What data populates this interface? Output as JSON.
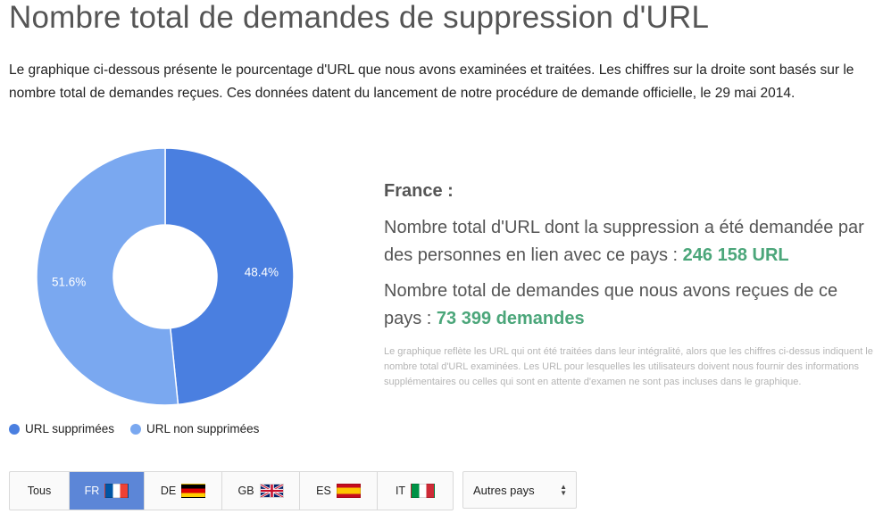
{
  "page": {
    "title": "Nombre total de demandes de suppression d'URL",
    "intro": "Le graphique ci-dessous présente le pourcentage d'URL que nous avons examinées et traitées. Les chiffres sur la droite sont basés sur le nombre total de demandes reçues. Ces données datent du lancement de notre procédure de demande officielle, le 29 mai 2014."
  },
  "chart_data": {
    "type": "pie",
    "donut": true,
    "categories": [
      "URL supprimées",
      "URL non supprimées"
    ],
    "values": [
      48.4,
      51.6
    ],
    "value_labels": [
      "48.4%",
      "51.6%"
    ],
    "colors": [
      "#4a7fe0",
      "#7aa8f0"
    ],
    "legend_position": "bottom-left"
  },
  "stats": {
    "country": "France :",
    "urls_prefix": "Nombre total d'URL dont la suppression a été demandée par des personnes en lien avec ce pays : ",
    "urls_value": "246 158 URL",
    "requests_prefix": "Nombre total de demandes que nous avons reçues de ce pays : ",
    "requests_value": "73 399 demandes",
    "footnote": "Le graphique reflète les URL qui ont été traitées dans leur intégralité, alors que les chiffres ci-dessus indiquent le nombre total d'URL examinées. Les URL pour lesquelles les utilisateurs doivent nous fournir des informations supplémentaires ou celles qui sont en attente d'examen ne sont pas incluses dans le graphique."
  },
  "tabs": [
    {
      "label": "Tous",
      "active": false,
      "flag": null
    },
    {
      "label": "FR",
      "active": true,
      "flag": "france-flag-icon"
    },
    {
      "label": "DE",
      "active": false,
      "flag": "germany-flag-icon"
    },
    {
      "label": "GB",
      "active": false,
      "flag": "uk-flag-icon"
    },
    {
      "label": "ES",
      "active": false,
      "flag": "spain-flag-icon"
    },
    {
      "label": "IT",
      "active": false,
      "flag": "italy-flag-icon"
    }
  ],
  "other_countries": {
    "label": "Autres pays",
    "icon": "sort-arrows-icon"
  },
  "colors": {
    "accent_green": "#4ba67a",
    "active_tab": "#5c86d7"
  }
}
